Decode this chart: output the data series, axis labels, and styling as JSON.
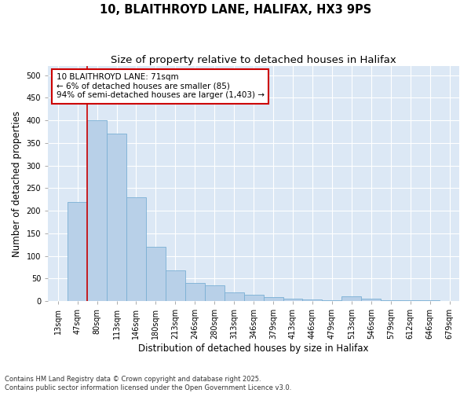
{
  "title_line1": "10, BLAITHROYD LANE, HALIFAX, HX3 9PS",
  "title_line2": "Size of property relative to detached houses in Halifax",
  "xlabel": "Distribution of detached houses by size in Halifax",
  "ylabel": "Number of detached properties",
  "bar_color": "#b8d0e8",
  "bar_edge_color": "#7aafd4",
  "background_color": "#dce8f5",
  "grid_color": "#ffffff",
  "annotation_box_text": "10 BLAITHROYD LANE: 71sqm\n← 6% of detached houses are smaller (85)\n94% of semi-detached houses are larger (1,403) →",
  "annotation_box_color": "#ffffff",
  "annotation_box_edge_color": "#cc0000",
  "vline_color": "#cc0000",
  "vline_x_index": 1.5,
  "categories": [
    "13sqm",
    "47sqm",
    "80sqm",
    "113sqm",
    "146sqm",
    "180sqm",
    "213sqm",
    "246sqm",
    "280sqm",
    "313sqm",
    "346sqm",
    "379sqm",
    "413sqm",
    "446sqm",
    "479sqm",
    "513sqm",
    "546sqm",
    "579sqm",
    "612sqm",
    "646sqm",
    "679sqm"
  ],
  "values": [
    0,
    220,
    400,
    370,
    230,
    120,
    68,
    40,
    35,
    20,
    14,
    8,
    5,
    4,
    1,
    10,
    5,
    1,
    1,
    1,
    0
  ],
  "ylim": [
    0,
    520
  ],
  "yticks": [
    0,
    50,
    100,
    150,
    200,
    250,
    300,
    350,
    400,
    450,
    500
  ],
  "footnote": "Contains HM Land Registry data © Crown copyright and database right 2025.\nContains public sector information licensed under the Open Government Licence v3.0.",
  "title_fontsize": 10.5,
  "subtitle_fontsize": 9.5,
  "tick_fontsize": 7,
  "label_fontsize": 8.5,
  "annotation_fontsize": 7.5
}
